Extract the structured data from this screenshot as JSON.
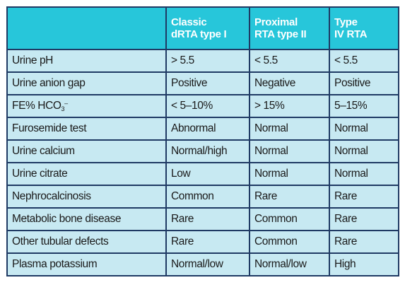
{
  "header": {
    "cols": [
      {
        "line1": "",
        "line2": ""
      },
      {
        "line1": "Classic",
        "line2": "dRTA type I"
      },
      {
        "line1": "Proximal",
        "line2": "RTA type II"
      },
      {
        "line1": "Type",
        "line2": "IV RTA"
      }
    ]
  },
  "rows": [
    {
      "label": "Urine pH",
      "cells": [
        "> 5.5",
        "< 5.5",
        "< 5.5"
      ]
    },
    {
      "label": "Urine anion gap",
      "cells": [
        "Positive",
        "Negative",
        "Positive"
      ]
    },
    {
      "label_pre": "FE% HCO",
      "label_sub": "3",
      "label_sup": "–",
      "cells": [
        "< 5–10%",
        "> 15%",
        "5–15%"
      ]
    },
    {
      "label": "Furosemide test",
      "cells": [
        "Abnormal",
        "Normal",
        "Normal"
      ]
    },
    {
      "label": "Urine calcium",
      "cells": [
        "Normal/high",
        "Normal",
        "Normal"
      ]
    },
    {
      "label": "Urine citrate",
      "cells": [
        "Low",
        "Normal",
        "Normal"
      ]
    },
    {
      "label": "Nephrocalcinosis",
      "cells": [
        "Common",
        "Rare",
        "Rare"
      ]
    },
    {
      "label": "Metabolic bone disease",
      "cells": [
        "Rare",
        "Common",
        "Rare"
      ]
    },
    {
      "label": "Other tubular defects",
      "cells": [
        "Rare",
        "Common",
        "Rare"
      ]
    },
    {
      "label": "Plasma potassium",
      "cells": [
        "Normal/low",
        "Normal/low",
        "High"
      ]
    }
  ]
}
